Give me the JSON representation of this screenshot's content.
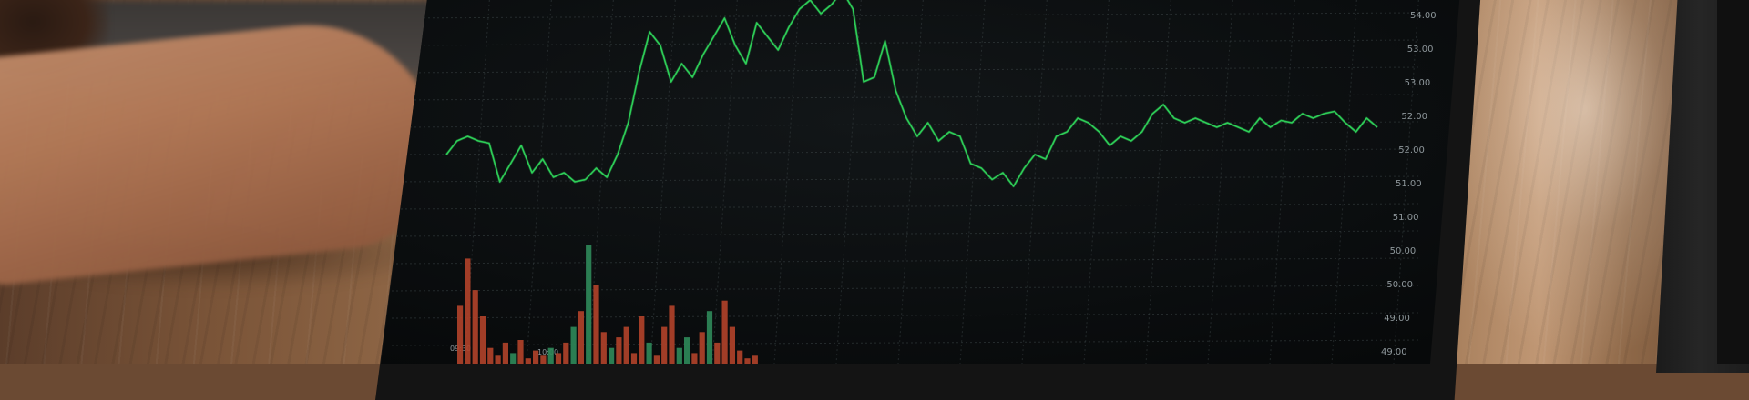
{
  "scene": "Laptop screen showing a green stock line chart with volume bars, on a wooden desk",
  "colors": {
    "screen_bg": "#0d0f10",
    "grid": "#3b4446",
    "line": "#2ecf58",
    "bar_red": "#b2432a",
    "bar_green": "#2f8a5a",
    "tick_text": "#8d969a"
  },
  "chart_data": {
    "type": "line",
    "y_ticks": [
      "54.00",
      "53.00",
      "53.00",
      "52.00",
      "52.00",
      "51.00",
      "51.00",
      "50.00",
      "50.00",
      "49.00",
      "49.00"
    ],
    "x_ticks": [
      "09:30",
      "10:00"
    ],
    "series": [
      {
        "values": [
          51.6,
          51.9,
          52.0,
          51.9,
          51.85,
          51.0,
          51.4,
          51.8,
          51.2,
          51.5,
          51.1,
          51.2,
          51.0,
          51.05,
          51.3,
          51.1,
          51.6,
          52.3,
          53.4,
          54.3,
          54.0,
          53.2,
          53.6,
          53.3,
          53.8,
          54.2,
          54.6,
          54.0,
          53.6,
          54.5,
          54.2,
          53.9,
          54.4,
          54.8,
          55.0,
          54.7,
          54.9,
          55.2,
          54.8,
          53.2,
          53.3,
          54.1,
          53.0,
          52.4,
          52.0,
          52.3,
          51.9,
          52.1,
          52.0,
          51.4,
          51.3,
          51.05,
          51.2,
          50.9,
          51.3,
          51.6,
          51.5,
          52.0,
          52.1,
          52.4,
          52.3,
          52.1,
          51.8,
          52.0,
          51.9,
          52.1,
          52.5,
          52.7,
          52.4,
          52.3,
          52.4,
          52.3,
          52.2,
          52.3,
          52.2,
          52.1,
          52.4,
          52.2,
          52.35,
          52.3,
          52.5,
          52.4,
          52.5,
          52.55,
          52.3,
          52.1,
          52.4,
          52.2
        ]
      }
    ],
    "volume": {
      "values": [
        22,
        40,
        28,
        18,
        6,
        3,
        8,
        4,
        9,
        2,
        5,
        3,
        6,
        4,
        8,
        14,
        20,
        45,
        30,
        12,
        6,
        10,
        14,
        4,
        18,
        8,
        3,
        14,
        22,
        6,
        10,
        4,
        12,
        20,
        8,
        24,
        14,
        5,
        2,
        3
      ],
      "colors": [
        "red",
        "red",
        "red",
        "red",
        "red",
        "red",
        "red",
        "green",
        "red",
        "red",
        "red",
        "red",
        "green",
        "red",
        "red",
        "green",
        "red",
        "green",
        "red",
        "red",
        "green",
        "red",
        "red",
        "red",
        "red",
        "green",
        "red",
        "red",
        "red",
        "green",
        "green",
        "red",
        "red",
        "green",
        "red",
        "red",
        "red",
        "red",
        "red",
        "red"
      ]
    }
  }
}
